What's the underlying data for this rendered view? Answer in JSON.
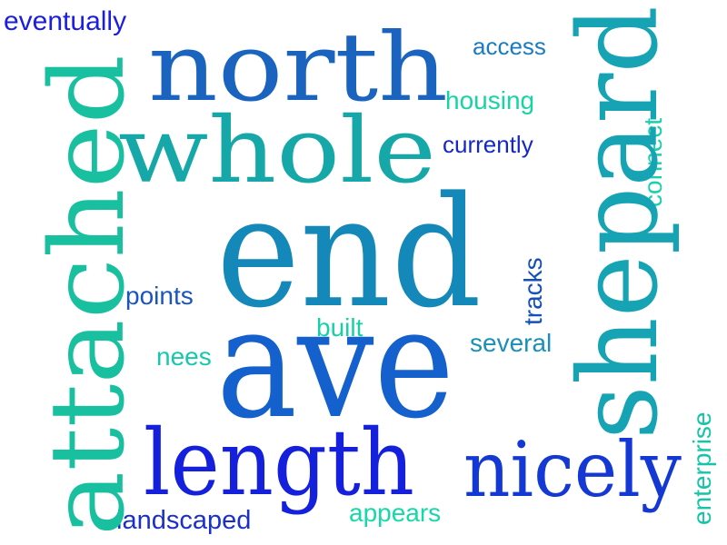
{
  "words": [
    {
      "text": "eventually",
      "color": "#1a1ee0"
    },
    {
      "text": "north",
      "color": "#1a64c0"
    },
    {
      "text": "access",
      "color": "#1a7cc0"
    },
    {
      "text": "shepard",
      "color": "#16a4b4"
    },
    {
      "text": "housing",
      "color": "#16d4a4"
    },
    {
      "text": "whole",
      "color": "#16a8a8"
    },
    {
      "text": "currently",
      "color": "#1428c8"
    },
    {
      "text": "connect",
      "color": "#18d0ac"
    },
    {
      "text": "attached",
      "color": "#18c0a0"
    },
    {
      "text": "end",
      "color": "#1488b8"
    },
    {
      "text": "tracks",
      "color": "#1450b8"
    },
    {
      "text": "points",
      "color": "#1a54c0"
    },
    {
      "text": "built",
      "color": "#18d0a8"
    },
    {
      "text": "several",
      "color": "#1a90b8"
    },
    {
      "text": "nees",
      "color": "#18c8ac"
    },
    {
      "text": "ave",
      "color": "#1460cc"
    },
    {
      "text": "enterprise",
      "color": "#16c4a8"
    },
    {
      "text": "length",
      "color": "#1420dc"
    },
    {
      "text": "nicely",
      "color": "#1438d4"
    },
    {
      "text": "landscaped",
      "color": "#1a30c8"
    },
    {
      "text": "appears",
      "color": "#16d8a8"
    }
  ]
}
